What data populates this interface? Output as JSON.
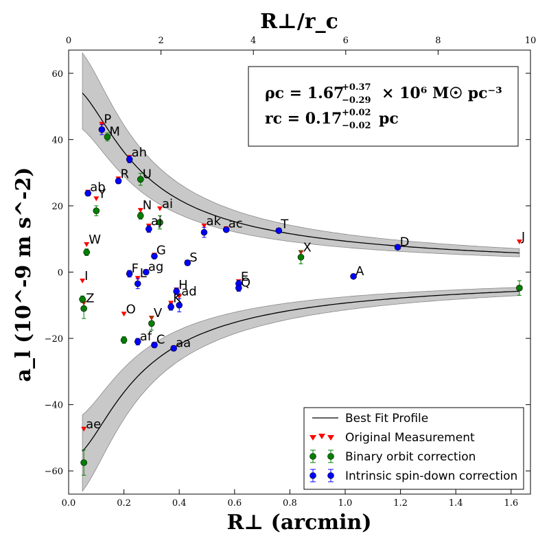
{
  "chart_data": {
    "type": "scatter",
    "xlabel": "R⊥ (arcmin)",
    "ylabel": "a_l (10^-9 m s^-2)",
    "top_xlabel": "R⊥/r_c",
    "xlim": [
      0.0,
      1.67
    ],
    "ylim": [
      -67,
      67
    ],
    "top_xlim": [
      0,
      10
    ],
    "x_ticks": [
      "0.0",
      "0.2",
      "0.4",
      "0.6",
      "0.8",
      "1.0",
      "1.2",
      "1.4",
      "1.6"
    ],
    "x_tick_values": [
      0.0,
      0.2,
      0.4,
      0.6,
      0.8,
      1.0,
      1.2,
      1.4,
      1.6
    ],
    "y_ticks": [
      "60",
      "40",
      "20",
      "0",
      "−20",
      "−40",
      "−60"
    ],
    "y_tick_values": [
      60,
      40,
      20,
      0,
      -20,
      -40,
      -60
    ],
    "top_ticks": [
      "0",
      "2",
      "4",
      "6",
      "8",
      "10"
    ],
    "top_tick_values": [
      0,
      2,
      4,
      6,
      8,
      10
    ],
    "annotation": {
      "line1_main": "ρc = 1.67",
      "line1_sup": "+0.37",
      "line1_sub": "−0.29",
      "line1_tail": "× 10⁶ M☉ pc⁻³",
      "line2_main": "rc = 0.17",
      "line2_sup": "+0.02",
      "line2_sub": "−0.02",
      "line2_tail": "pc"
    },
    "legend": {
      "position": "lower-right",
      "entries": [
        {
          "label": "Best Fit Profile",
          "kind": "line"
        },
        {
          "label": "Original Measurement",
          "kind": "red-triangle"
        },
        {
          "label": "Binary orbit correction",
          "kind": "green-dot"
        },
        {
          "label": "Intrinsic spin-down correction",
          "kind": "blue-dot"
        }
      ]
    },
    "colors": {
      "red": "#ff0000",
      "green": "#007f00",
      "blue": "#0000ff",
      "band": "#c8c8c8"
    },
    "profile": {
      "rho_c": 1.67,
      "r_c_arcmin": 0.168,
      "amp": 56.4,
      "band_upper_amp": 69,
      "band_lower_amp": 45,
      "x_start": 0.05,
      "x_end": 1.63
    },
    "series": [
      {
        "name": "Original Measurement",
        "marker": "red-triangle",
        "points": [
          {
            "label": "P",
            "x": 0.12,
            "y": 44.5
          },
          {
            "label": "M",
            "x": 0.14,
            "y": 40.8
          },
          {
            "label": "ah",
            "x": 0.22,
            "y": 34.5
          },
          {
            "label": "U",
            "x": 0.26,
            "y": 27.5
          },
          {
            "label": "R",
            "x": 0.18,
            "y": 28.0
          },
          {
            "label": "Y",
            "x": 0.1,
            "y": 22.0
          },
          {
            "label": "ab",
            "x": 0.07,
            "y": 24.0
          },
          {
            "label": "N",
            "x": 0.26,
            "y": 18.5
          },
          {
            "label": "ai",
            "x": 0.33,
            "y": 19.0
          },
          {
            "label": "aj",
            "x": 0.29,
            "y": 13.8
          },
          {
            "label": "ak",
            "x": 0.49,
            "y": 13.8
          },
          {
            "label": "ac",
            "x": 0.57,
            "y": 13.0
          },
          {
            "label": "T",
            "x": 0.76,
            "y": 12.5
          },
          {
            "label": "W",
            "x": 0.065,
            "y": 8.2
          },
          {
            "label": "G",
            "x": 0.31,
            "y": 5.0
          },
          {
            "label": "X",
            "x": 0.84,
            "y": 5.8
          },
          {
            "label": "D",
            "x": 1.19,
            "y": 7.5
          },
          {
            "label": "J",
            "x": 1.63,
            "y": 9.0
          },
          {
            "label": "S",
            "x": 0.43,
            "y": 2.8
          },
          {
            "label": "F",
            "x": 0.22,
            "y": -0.5
          },
          {
            "label": "ag",
            "x": 0.28,
            "y": 0.0
          },
          {
            "label": "I",
            "x": 0.05,
            "y": -2.8
          },
          {
            "label": "L",
            "x": 0.25,
            "y": -2.0
          },
          {
            "label": "E",
            "x": 0.615,
            "y": -3.0
          },
          {
            "label": "Q",
            "x": 0.615,
            "y": -4.5
          },
          {
            "label": "A",
            "x": 1.03,
            "y": -1.5
          },
          {
            "label": "H",
            "x": 0.39,
            "y": -5.5
          },
          {
            "label": "ad",
            "x": 0.4,
            "y": -7.5
          },
          {
            "label": "K",
            "x": 0.37,
            "y": -9.5
          },
          {
            "label": "Z",
            "x": 0.055,
            "y": -9.5
          },
          {
            "label": "O",
            "x": 0.2,
            "y": -12.8
          },
          {
            "label": "V",
            "x": 0.3,
            "y": -14.0
          },
          {
            "label": "af",
            "x": 0.25,
            "y": -21.0
          },
          {
            "label": "C",
            "x": 0.31,
            "y": -22.0
          },
          {
            "label": "aa",
            "x": 0.38,
            "y": -23.0
          },
          {
            "label": "ae",
            "x": 0.055,
            "y": -47.5
          }
        ]
      },
      {
        "name": "Binary orbit correction",
        "marker": "green-dot",
        "points": [
          {
            "label": "M",
            "x": 0.14,
            "y": 40.8,
            "err": 1.2
          },
          {
            "label": "U",
            "x": 0.26,
            "y": 28.0,
            "err": 1.8
          },
          {
            "label": "Y",
            "x": 0.1,
            "y": 18.5,
            "err": 1.5
          },
          {
            "label": "N",
            "x": 0.26,
            "y": 17.0,
            "err": 1.0
          },
          {
            "label": "ai",
            "x": 0.33,
            "y": 15.0,
            "err": 2.0
          },
          {
            "label": "W",
            "x": 0.065,
            "y": 6.0,
            "err": 1.0
          },
          {
            "label": "X",
            "x": 0.84,
            "y": 4.5,
            "err": 2.0
          },
          {
            "label": "J",
            "x": 1.63,
            "y": -4.8,
            "err": 2.2
          },
          {
            "label": "I",
            "x": 0.05,
            "y": -8.2,
            "err": 1.0
          },
          {
            "label": "Z",
            "x": 0.055,
            "y": -11.0,
            "err": 3.0
          },
          {
            "label": "V",
            "x": 0.3,
            "y": -15.5,
            "err": 2.0
          },
          {
            "label": "O",
            "x": 0.2,
            "y": -20.5,
            "err": 1.0
          },
          {
            "label": "ae",
            "x": 0.055,
            "y": -57.5,
            "err": 3.8
          }
        ]
      },
      {
        "name": "Intrinsic spin-down correction",
        "marker": "blue-dot",
        "points": [
          {
            "label": "P",
            "x": 0.12,
            "y": 43.0,
            "err": 1.5
          },
          {
            "label": "ah",
            "x": 0.22,
            "y": 34.0,
            "err": 1.0
          },
          {
            "label": "R",
            "x": 0.18,
            "y": 27.5,
            "err": 0.8
          },
          {
            "label": "ab",
            "x": 0.07,
            "y": 23.8,
            "err": 0.8
          },
          {
            "label": "aj",
            "x": 0.29,
            "y": 13.0,
            "err": 1.0
          },
          {
            "label": "ak",
            "x": 0.49,
            "y": 12.0,
            "err": 1.5
          },
          {
            "label": "ac",
            "x": 0.57,
            "y": 12.8,
            "err": 0.6
          },
          {
            "label": "T",
            "x": 0.76,
            "y": 12.5,
            "err": 0.6
          },
          {
            "label": "D",
            "x": 1.19,
            "y": 7.5,
            "err": 0.6
          },
          {
            "label": "G",
            "x": 0.31,
            "y": 4.8,
            "err": 0.6
          },
          {
            "label": "S",
            "x": 0.43,
            "y": 2.8,
            "err": 0.8
          },
          {
            "label": "F",
            "x": 0.22,
            "y": -0.5,
            "err": 1.0
          },
          {
            "label": "ag",
            "x": 0.28,
            "y": 0.0,
            "err": 0.6
          },
          {
            "label": "L",
            "x": 0.25,
            "y": -3.5,
            "err": 1.5
          },
          {
            "label": "A",
            "x": 1.03,
            "y": -1.3,
            "err": 0.6
          },
          {
            "label": "E",
            "x": 0.615,
            "y": -3.5,
            "err": 1.0
          },
          {
            "label": "Q",
            "x": 0.615,
            "y": -4.8,
            "err": 1.0
          },
          {
            "label": "H",
            "x": 0.39,
            "y": -5.8,
            "err": 1.0
          },
          {
            "label": "ad",
            "x": 0.4,
            "y": -10.0,
            "err": 2.0
          },
          {
            "label": "K",
            "x": 0.37,
            "y": -10.5,
            "err": 1.0
          },
          {
            "label": "af",
            "x": 0.25,
            "y": -21.0,
            "err": 1.0
          },
          {
            "label": "C",
            "x": 0.31,
            "y": -22.0,
            "err": 0.8
          },
          {
            "label": "aa",
            "x": 0.38,
            "y": -23.0,
            "err": 0.6
          }
        ]
      }
    ],
    "point_labels": [
      {
        "text": "P",
        "x": 0.12,
        "y": 44.5
      },
      {
        "text": "M",
        "x": 0.14,
        "y": 40.8
      },
      {
        "text": "ah",
        "x": 0.22,
        "y": 34.5
      },
      {
        "text": "U",
        "x": 0.26,
        "y": 28.0
      },
      {
        "text": "R",
        "x": 0.18,
        "y": 28.0
      },
      {
        "text": "ab",
        "x": 0.07,
        "y": 24.0
      },
      {
        "text": "Y",
        "x": 0.1,
        "y": 22.0
      },
      {
        "text": "N",
        "x": 0.26,
        "y": 18.5
      },
      {
        "text": "ai",
        "x": 0.33,
        "y": 19.0
      },
      {
        "text": "aj",
        "x": 0.29,
        "y": 13.8
      },
      {
        "text": "ak",
        "x": 0.49,
        "y": 13.8
      },
      {
        "text": "ac",
        "x": 0.57,
        "y": 13.0
      },
      {
        "text": "T",
        "x": 0.76,
        "y": 12.8
      },
      {
        "text": "W",
        "x": 0.065,
        "y": 8.2
      },
      {
        "text": "G",
        "x": 0.31,
        "y": 5.0
      },
      {
        "text": "X",
        "x": 0.84,
        "y": 5.8
      },
      {
        "text": "D",
        "x": 1.19,
        "y": 7.5
      },
      {
        "text": "J",
        "x": 1.63,
        "y": 9.0
      },
      {
        "text": "S",
        "x": 0.43,
        "y": 2.8
      },
      {
        "text": "F",
        "x": 0.22,
        "y": -0.5
      },
      {
        "text": "ag",
        "x": 0.28,
        "y": 0.0
      },
      {
        "text": "I",
        "x": 0.05,
        "y": -2.8
      },
      {
        "text": "L",
        "x": 0.25,
        "y": -2.0
      },
      {
        "text": "A",
        "x": 1.03,
        "y": -1.3
      },
      {
        "text": "E",
        "x": 0.615,
        "y": -3.0
      },
      {
        "text": "Q",
        "x": 0.615,
        "y": -4.8
      },
      {
        "text": "H",
        "x": 0.39,
        "y": -5.5
      },
      {
        "text": "ad",
        "x": 0.4,
        "y": -7.5
      },
      {
        "text": "K",
        "x": 0.37,
        "y": -9.5
      },
      {
        "text": "Z",
        "x": 0.055,
        "y": -9.5
      },
      {
        "text": "O",
        "x": 0.2,
        "y": -12.8
      },
      {
        "text": "V",
        "x": 0.3,
        "y": -14.0
      },
      {
        "text": "af",
        "x": 0.25,
        "y": -21.0
      },
      {
        "text": "C",
        "x": 0.31,
        "y": -22.0
      },
      {
        "text": "aa",
        "x": 0.38,
        "y": -23.0
      },
      {
        "text": "ae",
        "x": 0.055,
        "y": -47.5
      }
    ]
  }
}
